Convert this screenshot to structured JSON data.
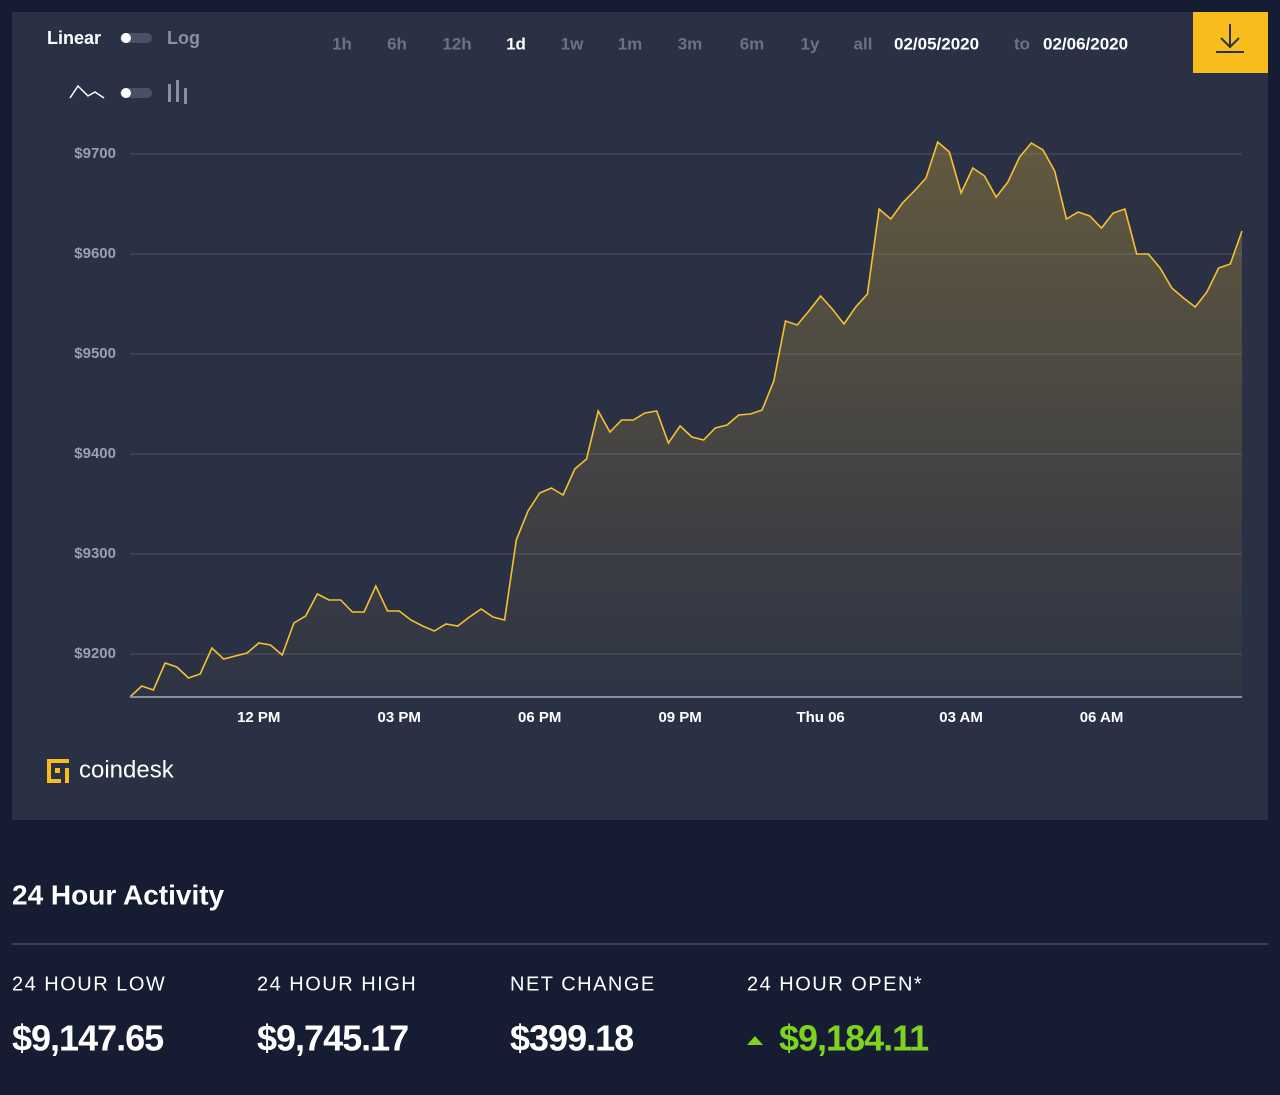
{
  "toolbar": {
    "scale_options": [
      "Linear",
      "Log"
    ],
    "ranges": [
      "1h",
      "6h",
      "12h",
      "1d",
      "1w",
      "1m",
      "3m",
      "6m",
      "1y",
      "all"
    ],
    "active_range": "1d",
    "date_from": "02/05/2020",
    "date_separator": "to",
    "date_to": "02/06/2020"
  },
  "chart_data": {
    "type": "line",
    "color": "#f5c033",
    "grid": true,
    "x": [
      9.25,
      9.5,
      9.75,
      10,
      10.25,
      10.5,
      10.75,
      11,
      11.25,
      11.5,
      11.75,
      12,
      12.25,
      12.5,
      12.75,
      13,
      13.25,
      13.5,
      13.75,
      14,
      14.25,
      14.5,
      14.75,
      15,
      15.25,
      15.5,
      15.75,
      16,
      16.25,
      16.5,
      16.75,
      17,
      17.25,
      17.5,
      17.75,
      18,
      18.25,
      18.5,
      18.75,
      19,
      19.25,
      19.5,
      19.75,
      20,
      20.25,
      20.5,
      20.75,
      21,
      21.25,
      21.5,
      21.75,
      22,
      22.25,
      22.5,
      22.75,
      23,
      23.25,
      23.5,
      23.75,
      24,
      24.25,
      24.5,
      24.75,
      25,
      25.25,
      25.5,
      25.75,
      26,
      26.25,
      26.5,
      26.75,
      27,
      27.25,
      27.5,
      27.75,
      28,
      28.25,
      28.5,
      28.75,
      29,
      29.25,
      29.5,
      29.75,
      30,
      30.25,
      30.5,
      30.75,
      31,
      31.25,
      31.5,
      31.75,
      32,
      32.25,
      32.5,
      32.75,
      33
    ],
    "values": [
      9157,
      9168,
      9164,
      9191,
      9187,
      9176,
      9180,
      9206,
      9195,
      9198,
      9201,
      9211,
      9209,
      9199,
      9231,
      9238,
      9260,
      9254,
      9254,
      9242,
      9242,
      9268,
      9243,
      9243,
      9234,
      9228,
      9223,
      9230,
      9228,
      9237,
      9245,
      9237,
      9234,
      9314,
      9343,
      9361,
      9366,
      9359,
      9385,
      9395,
      9443,
      9422,
      9434,
      9434,
      9441,
      9443,
      9411,
      9428,
      9417,
      9414,
      9426,
      9429,
      9439,
      9440,
      9444,
      9473,
      9533,
      9529,
      9543,
      9558,
      9545,
      9530,
      9547,
      9560,
      9645,
      9635,
      9651,
      9663,
      9676,
      9712,
      9702,
      9661,
      9686,
      9678,
      9657,
      9672,
      9697,
      9711,
      9704,
      9683,
      9635,
      9642,
      9638,
      9626,
      9641,
      9645,
      9600,
      9600,
      9586,
      9566,
      9556,
      9547,
      9562,
      9586,
      9590,
      9623
    ],
    "xlim": [
      9.25,
      33
    ],
    "xticks": [
      {
        "value": 12,
        "label": "12 PM"
      },
      {
        "value": 15,
        "label": "03 PM"
      },
      {
        "value": 18,
        "label": "06 PM"
      },
      {
        "value": 21,
        "label": "09 PM"
      },
      {
        "value": 24,
        "label": "Thu 06"
      },
      {
        "value": 27,
        "label": "03 AM"
      },
      {
        "value": 30,
        "label": "06 AM"
      }
    ],
    "ylim": [
      9157,
      9740
    ],
    "yticks": [
      {
        "value": 9200,
        "label": "$9200"
      },
      {
        "value": 9300,
        "label": "$9300"
      },
      {
        "value": 9400,
        "label": "$9400"
      },
      {
        "value": 9500,
        "label": "$9500"
      },
      {
        "value": 9600,
        "label": "$9600"
      },
      {
        "value": 9700,
        "label": "$9700"
      }
    ]
  },
  "brand": "coindesk",
  "activity": {
    "title": "24 Hour Activity",
    "stats": [
      {
        "label": "24 HOUR LOW",
        "value": "$9,147.65"
      },
      {
        "label": "24 HOUR HIGH",
        "value": "$9,745.17"
      },
      {
        "label": "NET CHANGE",
        "value": "$399.18"
      },
      {
        "label": "24 HOUR OPEN*",
        "value": "$9,184.11"
      }
    ]
  }
}
